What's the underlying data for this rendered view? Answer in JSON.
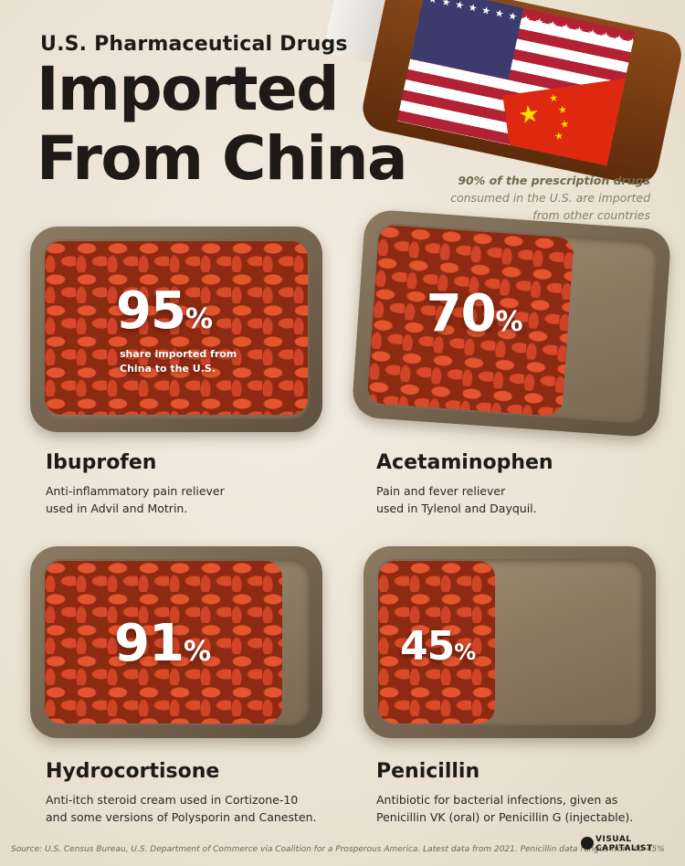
{
  "header": {
    "kicker": "U.S. Pharmaceutical Drugs",
    "title_line1": "Imported",
    "title_line2": "From China",
    "callout_bold": "90% of the prescription drugs",
    "callout_rest1": "consumed in the U.S. are imported",
    "callout_rest2": "from other countries"
  },
  "chart_data": {
    "type": "bar",
    "title": "U.S. Pharmaceutical Drugs Imported From China",
    "categories": [
      "Ibuprofen",
      "Acetaminophen",
      "Hydrocortisone",
      "Penicillin"
    ],
    "values": [
      95,
      70,
      91,
      45
    ],
    "value_suffix": "%",
    "value_caption": "share imported from China to the U.S.",
    "unit": "%",
    "ylim": [
      0,
      100
    ]
  },
  "drugs": [
    {
      "pct": "95",
      "pct_sign": "%",
      "name": "Ibuprofen",
      "desc1": "Anti-inflammatory pain reliever",
      "desc2": "used in Advil and Motrin."
    },
    {
      "pct": "70",
      "pct_sign": "%",
      "name": "Acetaminophen",
      "desc1": "Pain and fever reliever",
      "desc2": "used in Tylenol and Dayquil."
    },
    {
      "pct": "91",
      "pct_sign": "%",
      "name": "Hydrocortisone",
      "desc1": "Anti-itch steroid cream used in Cortizone-10",
      "desc2": "and some versions of Polysporin and Canesten."
    },
    {
      "pct": "45",
      "pct_sign": "%",
      "name": "Penicillin",
      "desc1": "Antibiotic for bacterial infections, given as",
      "desc2": "Penicillin VK (oral) or Penicillin G (injectable)."
    }
  ],
  "share_line1": "share imported from",
  "share_line2": "China to the U.S.",
  "footer": {
    "source": "Source: U.S. Census Bureau, U.S. Department of Commerce via Coalition for a Prosperous America. Latest data from 2021. Penicillin data ranges from 40-45%",
    "brand_line1": "VISUAL",
    "brand_line2": "CAPITALIST"
  },
  "colors": {
    "pill": "#d9492a",
    "tray": "#7a6a55",
    "background": "#ece4d6"
  },
  "icons": {
    "bottle": "pill-bottle-icon",
    "us_flag": "us-flag-icon",
    "china_flag": "china-flag-icon",
    "brand": "visual-capitalist-logo-icon"
  }
}
